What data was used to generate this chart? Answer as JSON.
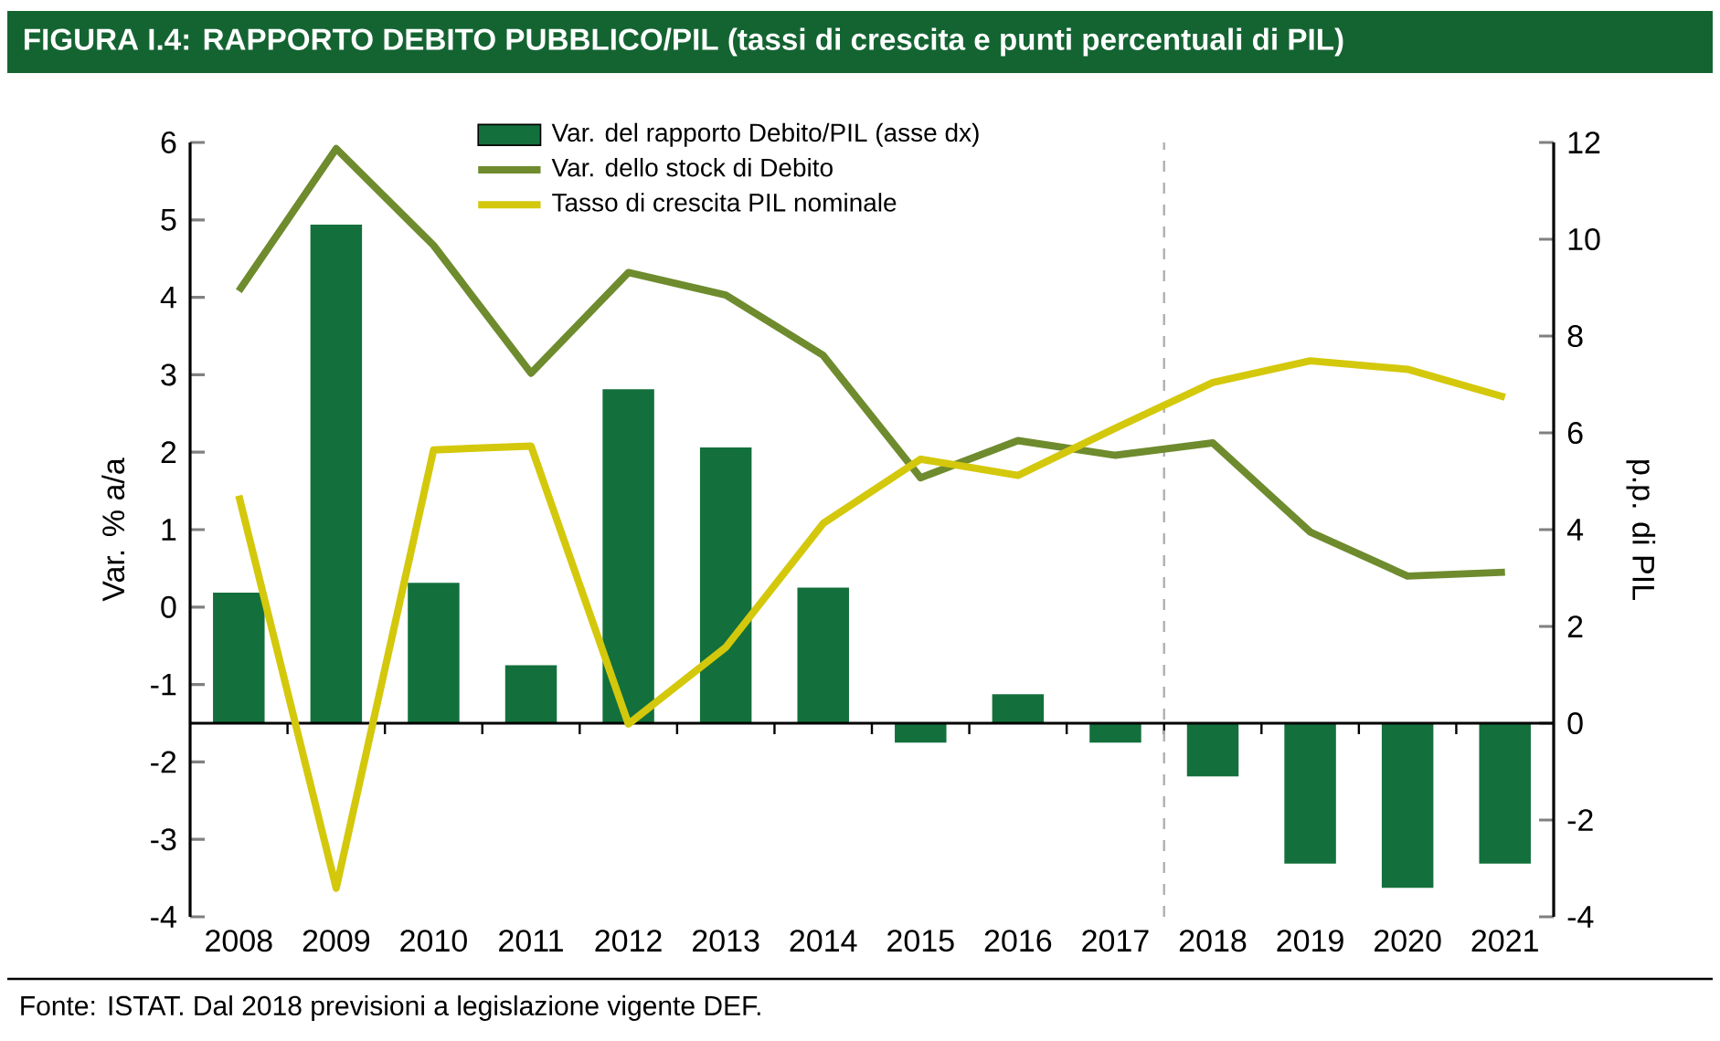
{
  "chart_data": {
    "type": "line",
    "title": "FIGURA I.4: RAPPORTO DEBITO PUBBLICO/PIL (tassi di crescita e punti percentuali di PIL)",
    "x": [
      2008,
      2009,
      2010,
      2011,
      2012,
      2013,
      2014,
      2015,
      2016,
      2017,
      2018,
      2019,
      2020,
      2021
    ],
    "series": [
      {
        "name": "Var. del rapporto Debito/PIL (asse dx)",
        "type": "bar",
        "axis": "y2",
        "color": "#13703c",
        "values": [
          2.7,
          10.3,
          2.9,
          1.2,
          6.9,
          5.7,
          2.8,
          -0.4,
          0.6,
          -0.4,
          -1.1,
          -2.9,
          -3.4,
          -2.9
        ]
      },
      {
        "name": "Var. dello stock di Debito",
        "color": "#6e8b2e",
        "values": [
          4.08,
          5.92,
          4.67,
          3.02,
          4.32,
          4.03,
          3.25,
          1.67,
          2.15,
          1.96,
          2.12,
          0.97,
          0.4,
          0.45
        ]
      },
      {
        "name": "Tasso di crescita PIL nominale",
        "color": "#d4c80c",
        "values": [
          1.44,
          -3.63,
          2.03,
          2.08,
          -1.51,
          -0.52,
          1.08,
          1.91,
          1.7,
          2.31,
          2.9,
          3.18,
          3.07,
          2.71
        ]
      }
    ],
    "xlim": [
      2007.5,
      2021.5
    ],
    "xticks": [
      2008,
      2009,
      2010,
      2011,
      2012,
      2013,
      2014,
      2015,
      2016,
      2017,
      2018,
      2019,
      2020,
      2021
    ],
    "ylim": [
      -4,
      6
    ],
    "yticks": [
      -4,
      -3,
      -2,
      -1,
      0,
      1,
      2,
      3,
      4,
      5,
      6
    ],
    "y2lim": [
      -4,
      12
    ],
    "y2ticks": [
      -4,
      -2,
      0,
      2,
      4,
      6,
      8,
      10,
      12
    ],
    "ylabel": "Var. % a/a",
    "y2label": "p.p. di PIL",
    "ref_lines": [
      {
        "axis": "x",
        "value": 2017.5,
        "color": "#b0b0b0",
        "line_style": "dashed"
      }
    ],
    "legend": "top",
    "annotations": [
      "Fonte: ISTAT. Dal 2018 previsioni a legislazione vigente DEF."
    ]
  }
}
